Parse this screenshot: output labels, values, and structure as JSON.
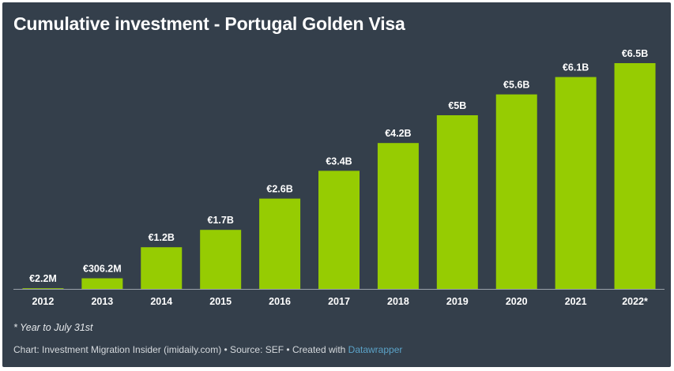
{
  "colors": {
    "background": "#343f4b",
    "bar": "#96cc02",
    "axis": "#9aa3ab",
    "text": "#ffffff",
    "link": "#5ba3c8"
  },
  "footer": {
    "note": "* Year to July 31st",
    "credit_prefix": "Chart: Investment Migration Insider (imidaily.com) • Source: SEF • Created with ",
    "credit_link": "Datawrapper"
  },
  "chart_data": {
    "type": "bar",
    "title": "Cumulative investment - Portugal Golden Visa",
    "xlabel": "",
    "ylabel": "",
    "unit": "EUR billions",
    "categories": [
      "2012",
      "2013",
      "2014",
      "2015",
      "2016",
      "2017",
      "2018",
      "2019",
      "2020",
      "2021",
      "2022*"
    ],
    "values": [
      0.0022,
      0.3062,
      1.2,
      1.7,
      2.6,
      3.4,
      4.2,
      5.0,
      5.6,
      6.1,
      6.5
    ],
    "labels": [
      "€2.2M",
      "€306.2M",
      "€1.2B",
      "€1.7B",
      "€2.6B",
      "€3.4B",
      "€4.2B",
      "€5B",
      "€5.6B",
      "€6.1B",
      "€6.5B"
    ],
    "ylim": [
      0,
      6.5
    ],
    "grid": false,
    "legend": "none"
  }
}
